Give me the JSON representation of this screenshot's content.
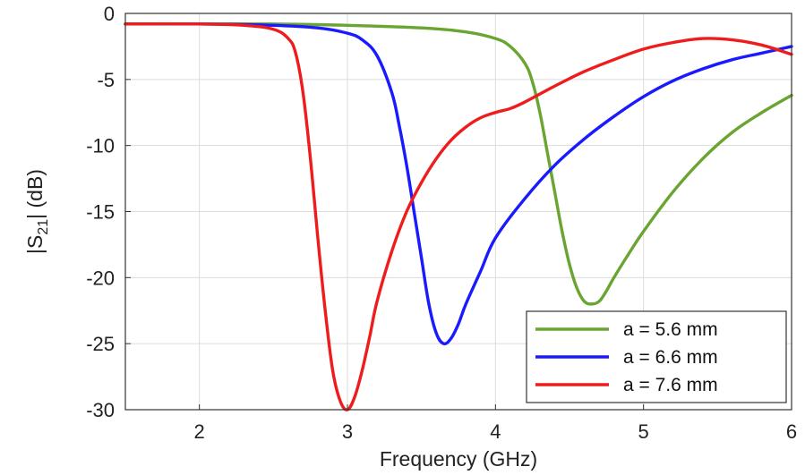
{
  "chart_data": {
    "type": "line",
    "xlabel": "Frequency (GHz)",
    "ylabel_base": "|S",
    "ylabel_sub": "21",
    "ylabel_tail": "| (dB)",
    "xlim": [
      1.5,
      6
    ],
    "ylim": [
      -30,
      0
    ],
    "xticks": [
      2,
      3,
      4,
      5,
      6
    ],
    "yticks": [
      0,
      -5,
      -10,
      -15,
      -20,
      -25,
      -30
    ],
    "grid": true,
    "legend_position": "bottom-right",
    "series": [
      {
        "name": "a = 5.6 mm",
        "color": "#6aa532",
        "x": [
          1.5,
          2.0,
          2.5,
          3.0,
          3.5,
          3.8,
          4.0,
          4.1,
          4.2,
          4.25,
          4.3,
          4.35,
          4.4,
          4.45,
          4.5,
          4.55,
          4.6,
          4.65,
          4.7,
          4.75,
          4.8,
          4.9,
          5.0,
          5.2,
          5.4,
          5.6,
          5.8,
          6.0
        ],
        "y": [
          -0.8,
          -0.8,
          -0.8,
          -0.9,
          -1.1,
          -1.4,
          -1.9,
          -2.5,
          -3.8,
          -5.2,
          -7.5,
          -10.5,
          -13.5,
          -16.5,
          -19.0,
          -20.8,
          -21.8,
          -22.0,
          -21.8,
          -21.0,
          -20.0,
          -18.2,
          -16.5,
          -13.5,
          -11.0,
          -9.0,
          -7.5,
          -6.2
        ]
      },
      {
        "name": "a = 6.6 mm",
        "color": "#1a1aff",
        "x": [
          1.5,
          2.0,
          2.5,
          2.8,
          3.0,
          3.1,
          3.2,
          3.3,
          3.35,
          3.4,
          3.45,
          3.5,
          3.55,
          3.6,
          3.65,
          3.7,
          3.75,
          3.8,
          3.9,
          4.0,
          4.2,
          4.4,
          4.6,
          4.8,
          5.0,
          5.2,
          5.4,
          5.6,
          5.8,
          6.0
        ],
        "y": [
          -0.8,
          -0.8,
          -0.9,
          -1.1,
          -1.5,
          -2.0,
          -3.2,
          -6.0,
          -8.5,
          -11.5,
          -15.0,
          -18.5,
          -22.0,
          -24.2,
          -25.0,
          -24.6,
          -23.5,
          -22.0,
          -19.5,
          -17.0,
          -14.0,
          -11.5,
          -9.5,
          -7.8,
          -6.3,
          -5.1,
          -4.2,
          -3.5,
          -3.0,
          -2.5
        ]
      },
      {
        "name": "a = 7.6 mm",
        "color": "#ee1c1c",
        "x": [
          1.5,
          2.0,
          2.3,
          2.5,
          2.6,
          2.65,
          2.7,
          2.75,
          2.8,
          2.85,
          2.9,
          2.95,
          3.0,
          3.05,
          3.1,
          3.15,
          3.2,
          3.3,
          3.4,
          3.5,
          3.6,
          3.7,
          3.8,
          3.9,
          4.0,
          4.1,
          4.2,
          4.4,
          4.6,
          4.8,
          5.0,
          5.2,
          5.4,
          5.6,
          5.8,
          6.0
        ],
        "y": [
          -0.8,
          -0.8,
          -0.9,
          -1.2,
          -1.9,
          -3.0,
          -6.0,
          -11.0,
          -17.0,
          -22.5,
          -27.0,
          -29.3,
          -30.0,
          -29.0,
          -27.0,
          -24.5,
          -21.8,
          -18.0,
          -15.0,
          -12.8,
          -11.0,
          -9.6,
          -8.6,
          -7.9,
          -7.5,
          -7.2,
          -6.7,
          -5.5,
          -4.4,
          -3.5,
          -2.7,
          -2.2,
          -1.9,
          -2.0,
          -2.4,
          -3.1
        ]
      }
    ]
  }
}
